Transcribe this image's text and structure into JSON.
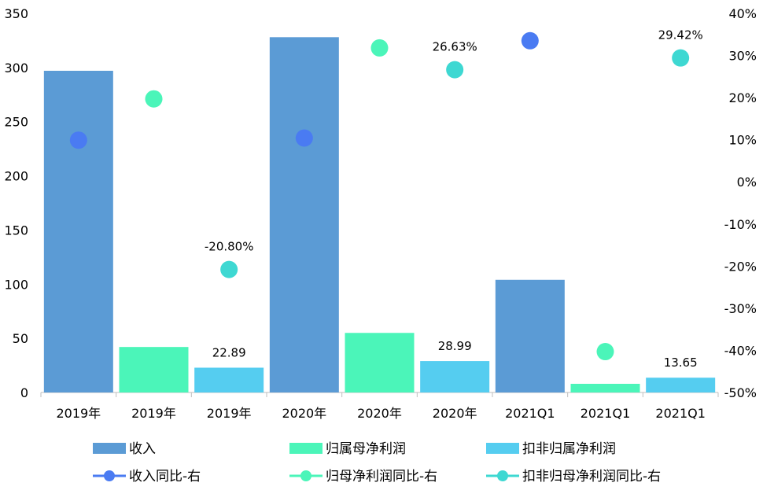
{
  "chart_data": {
    "type": "bar",
    "categories": [
      "2019年",
      "2019年",
      "2019年",
      "2020年",
      "2020年",
      "2020年",
      "2021Q1",
      "2021Q1",
      "2021Q1"
    ],
    "bar_series": [
      {
        "name": "收入",
        "color": "#5B9BD5",
        "values": [
          297,
          null,
          null,
          328,
          null,
          null,
          104,
          null,
          null
        ]
      },
      {
        "name": "归属母净利润",
        "color": "#4BF5B9",
        "values": [
          null,
          42,
          null,
          null,
          55,
          null,
          null,
          8,
          null
        ]
      },
      {
        "name": "扣非归属净利润",
        "color": "#55CDF0",
        "values": [
          null,
          null,
          22.89,
          null,
          null,
          28.99,
          null,
          null,
          13.65
        ]
      }
    ],
    "line_series": [
      {
        "name": "收入同比-右",
        "color": "#4A7BF2",
        "values": [
          0.099,
          null,
          null,
          0.104,
          null,
          null,
          0.335,
          null,
          null
        ]
      },
      {
        "name": "归母净利润同比-右",
        "color": "#4BF5B9",
        "values": [
          null,
          0.197,
          null,
          null,
          0.318,
          null,
          null,
          -0.403,
          null
        ]
      },
      {
        "name": "扣非归母净利润同比-右",
        "color": "#3ED8D2",
        "values": [
          null,
          null,
          -0.208,
          null,
          null,
          0.2663,
          null,
          null,
          0.2942
        ]
      }
    ],
    "data_labels": {
      "bars": [
        null,
        null,
        "22.89",
        null,
        null,
        "28.99",
        null,
        null,
        "13.65"
      ],
      "points": [
        null,
        null,
        "-20.80%",
        null,
        null,
        "26.63%",
        null,
        null,
        "29.42%"
      ]
    },
    "y_left": {
      "ylim": [
        0,
        350
      ],
      "ticks": [
        "0",
        "50",
        "100",
        "150",
        "200",
        "250",
        "300",
        "350"
      ]
    },
    "y_right": {
      "ylim": [
        -0.5,
        0.4
      ],
      "ticks": [
        "-50%",
        "-40%",
        "-30%",
        "-20%",
        "-10%",
        "0%",
        "10%",
        "20%",
        "30%",
        "40%"
      ]
    },
    "grid": false,
    "legend_position": "bottom"
  }
}
